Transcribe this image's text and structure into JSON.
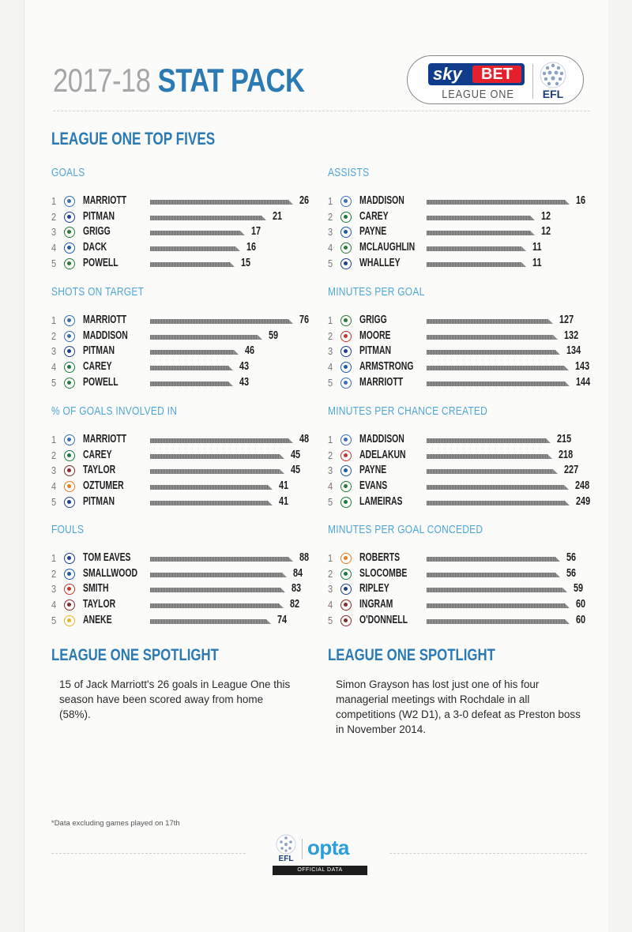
{
  "header": {
    "year": "2017-18",
    "title": "STAT PACK",
    "badge": {
      "sky": "sky",
      "bet": "BET",
      "league": "LEAGUE ONE",
      "efl": "EFL"
    }
  },
  "section_heading": "LEAGUE ONE TOP FIVES",
  "panels": [
    {
      "title": "GOALS",
      "max": 26,
      "crest_colors": [
        "#3a6fb5",
        "#1f3f8f",
        "#2a7a3a",
        "#1d5aa8",
        "#2a7a3a"
      ],
      "rows": [
        {
          "rank": "1",
          "name": "MARRIOTT",
          "value": 26
        },
        {
          "rank": "2",
          "name": "PITMAN",
          "value": 21
        },
        {
          "rank": "3",
          "name": "GRIGG",
          "value": 17
        },
        {
          "rank": "4",
          "name": "DACK",
          "value": 16
        },
        {
          "rank": "5",
          "name": "POWELL",
          "value": 15
        }
      ]
    },
    {
      "title": "ASSISTS",
      "max": 16,
      "crest_colors": [
        "#3a6fb5",
        "#1c7a3a",
        "#1d5aa8",
        "#2a7a3a",
        "#1f3f8f"
      ],
      "rows": [
        {
          "rank": "1",
          "name": "MADDISON",
          "value": 16
        },
        {
          "rank": "2",
          "name": "CAREY",
          "value": 12
        },
        {
          "rank": "3",
          "name": "PAYNE",
          "value": 12
        },
        {
          "rank": "4",
          "name": "MCLAUGHLIN",
          "value": 11
        },
        {
          "rank": "5",
          "name": "WHALLEY",
          "value": 11
        }
      ]
    },
    {
      "title": "SHOTS ON TARGET",
      "max": 76,
      "crest_colors": [
        "#3a6fb5",
        "#3a6fb5",
        "#1f3f8f",
        "#1c7a3a",
        "#2a7a3a"
      ],
      "rows": [
        {
          "rank": "1",
          "name": "MARRIOTT",
          "value": 76
        },
        {
          "rank": "2",
          "name": "MADDISON",
          "value": 59
        },
        {
          "rank": "3",
          "name": "PITMAN",
          "value": 46
        },
        {
          "rank": "4",
          "name": "CAREY",
          "value": 43
        },
        {
          "rank": "5",
          "name": "POWELL",
          "value": 43
        }
      ]
    },
    {
      "title": "MINUTES PER GOAL",
      "max": 144,
      "crest_colors": [
        "#2a7a3a",
        "#c0392b",
        "#1f3f8f",
        "#1d5aa8",
        "#3a6fb5"
      ],
      "rows": [
        {
          "rank": "1",
          "name": "GRIGG",
          "value": 127
        },
        {
          "rank": "2",
          "name": "MOORE",
          "value": 132
        },
        {
          "rank": "3",
          "name": "PITMAN",
          "value": 134
        },
        {
          "rank": "4",
          "name": "ARMSTRONG",
          "value": 143
        },
        {
          "rank": "5",
          "name": "MARRIOTT",
          "value": 144
        }
      ]
    },
    {
      "title": "% OF GOALS INVOLVED IN",
      "max": 48,
      "crest_colors": [
        "#3a6fb5",
        "#1c7a3a",
        "#8a2a2a",
        "#e67e22",
        "#1f3f8f"
      ],
      "rows": [
        {
          "rank": "1",
          "name": "MARRIOTT",
          "value": 48
        },
        {
          "rank": "2",
          "name": "CAREY",
          "value": 45
        },
        {
          "rank": "3",
          "name": "TAYLOR",
          "value": 45
        },
        {
          "rank": "4",
          "name": "OZTUMER",
          "value": 41
        },
        {
          "rank": "5",
          "name": "PITMAN",
          "value": 41
        }
      ]
    },
    {
      "title": "MINUTES PER CHANCE CREATED",
      "max": 249,
      "crest_colors": [
        "#3a6fb5",
        "#c0392b",
        "#1d5aa8",
        "#2a7a3a",
        "#1c7a3a"
      ],
      "rows": [
        {
          "rank": "1",
          "name": "MADDISON",
          "value": 215
        },
        {
          "rank": "2",
          "name": "ADELAKUN",
          "value": 218
        },
        {
          "rank": "3",
          "name": "PAYNE",
          "value": 227
        },
        {
          "rank": "4",
          "name": "EVANS",
          "value": 248
        },
        {
          "rank": "5",
          "name": "LAMEIRAS",
          "value": 249
        }
      ]
    },
    {
      "title": "FOULS",
      "max": 88,
      "crest_colors": [
        "#1f3f8f",
        "#1d5aa8",
        "#c0392b",
        "#8a2a2a",
        "#e6b422"
      ],
      "rows": [
        {
          "rank": "1",
          "name": "TOM EAVES",
          "value": 88
        },
        {
          "rank": "2",
          "name": "SMALLWOOD",
          "value": 84
        },
        {
          "rank": "3",
          "name": "SMITH",
          "value": 83
        },
        {
          "rank": "4",
          "name": "TAYLOR",
          "value": 82
        },
        {
          "rank": "5",
          "name": "ANEKE",
          "value": 74
        }
      ]
    },
    {
      "title": "MINUTES PER GOAL CONCEDED",
      "max": 60,
      "crest_colors": [
        "#e67e22",
        "#1c7a3a",
        "#1f3f8f",
        "#8a2a2a",
        "#8a2a2a"
      ],
      "rows": [
        {
          "rank": "1",
          "name": "ROBERTS",
          "value": 56
        },
        {
          "rank": "2",
          "name": "SLOCOMBE",
          "value": 56
        },
        {
          "rank": "3",
          "name": "RIPLEY",
          "value": 59
        },
        {
          "rank": "4",
          "name": "INGRAM",
          "value": 60
        },
        {
          "rank": "5",
          "name": "O'DONNELL",
          "value": 60
        }
      ]
    }
  ],
  "spotlights": [
    {
      "title": "LEAGUE ONE SPOTLIGHT",
      "text": "15 of Jack Marriott's 26 goals in League One this season have been scored away from home (58%)."
    },
    {
      "title": "LEAGUE ONE SPOTLIGHT",
      "text": "Simon Grayson has lost just one of his four managerial meetings with Rochdale in all competitions (W2 D1), a 3-0 defeat as Preston boss in November 2014."
    }
  ],
  "footnote": "*Data excluding games played on 17th",
  "opta": {
    "efl": "EFL",
    "word": "opta",
    "caption": "OFFICIAL DATA"
  },
  "colors": {
    "accent": "#2b7ab4",
    "subheading": "#4fa7d6",
    "year": "#a4a6a8"
  }
}
